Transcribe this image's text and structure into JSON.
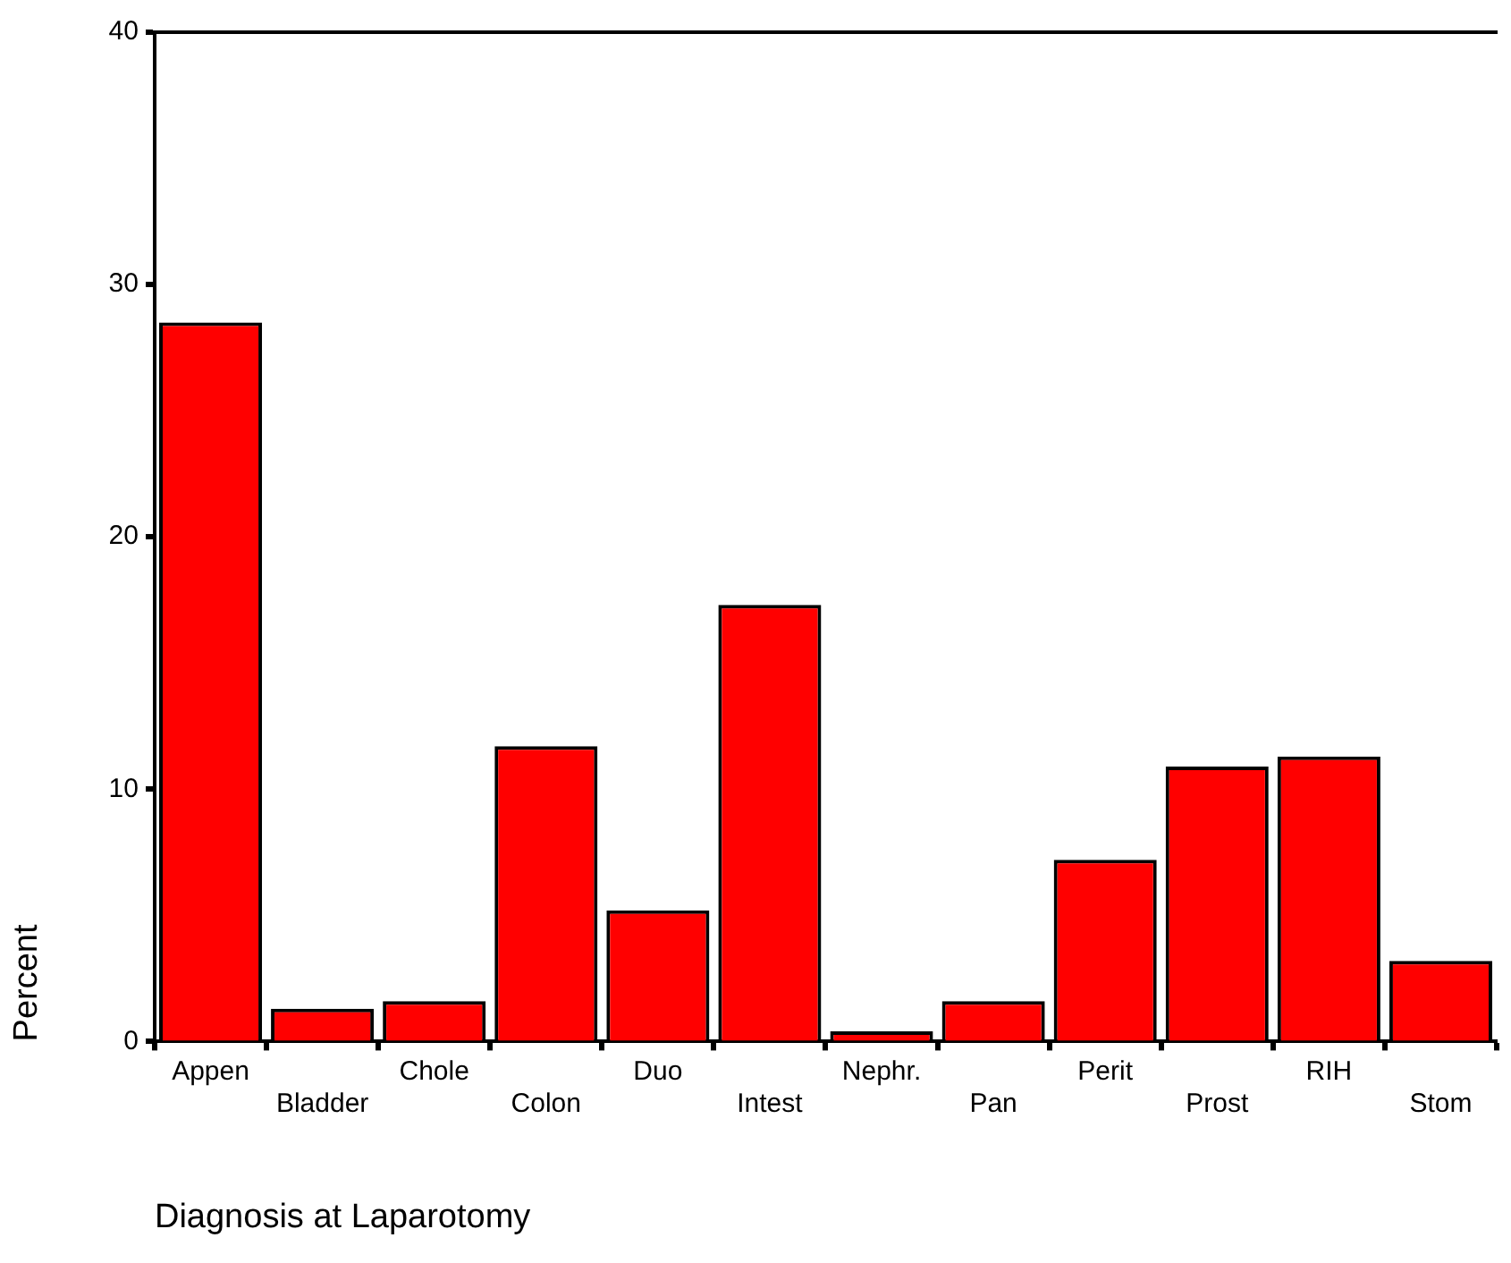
{
  "chart_data": {
    "type": "bar",
    "xlabel": "Diagnosis at Laparotomy",
    "ylabel": "Percent",
    "categories": [
      "Appen",
      "Bladder",
      "Chole",
      "Colon",
      "Duo",
      "Intest",
      "Nephr.",
      "Pan",
      "Perit",
      "Prost",
      "RIH",
      "Stom"
    ],
    "values": [
      28.5,
      1.3,
      1.6,
      11.7,
      5.2,
      17.3,
      0.4,
      1.6,
      7.2,
      10.9,
      11.3,
      3.2
    ],
    "color": "#ff0000",
    "ylim": [
      0,
      40
    ],
    "yticks": [
      0,
      10,
      20,
      30,
      40
    ],
    "grid": false,
    "legend": false
  }
}
